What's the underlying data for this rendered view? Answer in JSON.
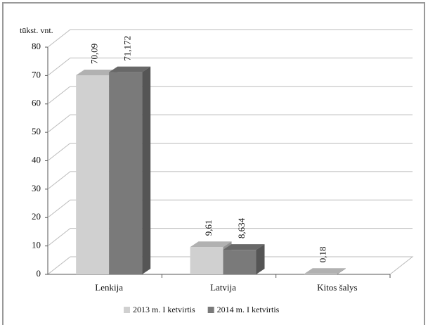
{
  "chart_data": {
    "type": "bar3d",
    "axis_label": "tūkst. vnt.",
    "categories": [
      "Lenkija",
      "Latvija",
      "Kitos šalys"
    ],
    "series": [
      {
        "name": "2013 m. I ketvirtis",
        "color": "#d0d0d0",
        "values": [
          70.09,
          9.61,
          0.18
        ],
        "value_labels": [
          "70,09",
          "9,61",
          "0,18"
        ]
      },
      {
        "name": "2014 m. I ketvirtis",
        "color": "#7a7a7a",
        "values": [
          71.172,
          8.634,
          null
        ],
        "value_labels": [
          "71,172",
          "8,634",
          null
        ]
      }
    ],
    "ylim": [
      0,
      80
    ],
    "yticks": [
      0,
      10,
      20,
      30,
      40,
      50,
      60,
      70,
      80
    ],
    "grid": true,
    "legend": "bottom"
  }
}
